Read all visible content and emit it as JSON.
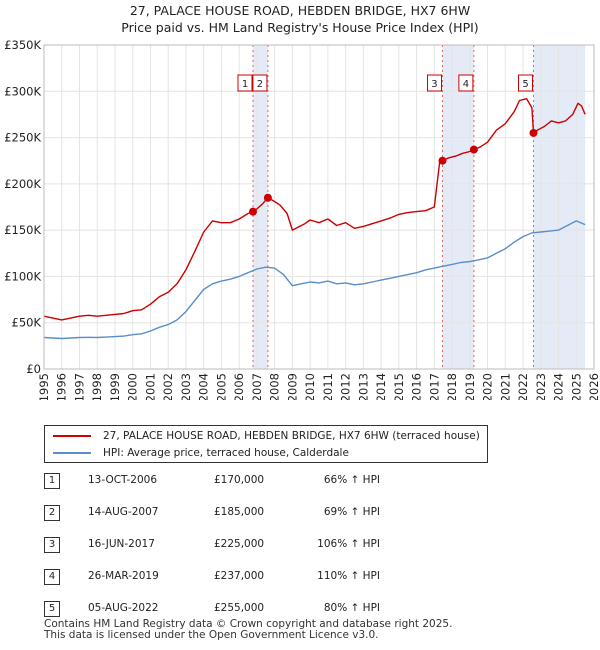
{
  "chart_data": {
    "type": "line",
    "title": "27, PALACE HOUSE ROAD, HEBDEN BRIDGE, HX7 6HW",
    "subtitle": "Price paid vs. HM Land Registry's House Price Index (HPI)",
    "xlabel": "",
    "ylabel": "",
    "xlim": [
      1995,
      2026
    ],
    "ylim": [
      0,
      350000
    ],
    "y_ticks": [
      {
        "value": 0,
        "label": "£0"
      },
      {
        "value": 50000,
        "label": "£50K"
      },
      {
        "value": 100000,
        "label": "£100K"
      },
      {
        "value": 150000,
        "label": "£150K"
      },
      {
        "value": 200000,
        "label": "£200K"
      },
      {
        "value": 250000,
        "label": "£250K"
      },
      {
        "value": 300000,
        "label": "£300K"
      },
      {
        "value": 350000,
        "label": "£350K"
      }
    ],
    "x_ticks": [
      "1995",
      "1996",
      "1997",
      "1998",
      "1999",
      "2000",
      "2001",
      "2002",
      "2003",
      "2004",
      "2005",
      "2006",
      "2007",
      "2008",
      "2009",
      "2010",
      "2011",
      "2012",
      "2013",
      "2014",
      "2015",
      "2016",
      "2017",
      "2018",
      "2019",
      "2020",
      "2021",
      "2022",
      "2023",
      "2024",
      "2025",
      "2026"
    ],
    "grid": true,
    "series": [
      {
        "name": "27, PALACE HOUSE ROAD, HEBDEN BRIDGE, HX7 6HW (terraced house)",
        "color": "#cc0000",
        "x": [
          1995.0,
          1995.5,
          1996.0,
          1996.5,
          1997.0,
          1997.5,
          1998.0,
          1998.5,
          1999.0,
          1999.5,
          2000.0,
          2000.5,
          2001.0,
          2001.5,
          2002.0,
          2002.5,
          2003.0,
          2003.5,
          2004.0,
          2004.5,
          2005.0,
          2005.5,
          2006.0,
          2006.5,
          2006.78,
          2007.0,
          2007.3,
          2007.62,
          2007.9,
          2008.3,
          2008.7,
          2009.0,
          2009.3,
          2009.7,
          2010.0,
          2010.5,
          2011.0,
          2011.5,
          2012.0,
          2012.5,
          2013.0,
          2013.5,
          2014.0,
          2014.5,
          2015.0,
          2015.5,
          2016.0,
          2016.5,
          2017.0,
          2017.3,
          2017.46,
          2017.8,
          2018.2,
          2018.6,
          2019.0,
          2019.23,
          2019.6,
          2020.0,
          2020.5,
          2021.0,
          2021.5,
          2021.8,
          2022.2,
          2022.5,
          2022.59,
          2022.8,
          2023.2,
          2023.6,
          2024.0,
          2024.4,
          2024.8,
          2025.1,
          2025.3,
          2025.5
        ],
        "values": [
          57000,
          55000,
          53000,
          55000,
          57000,
          58000,
          57000,
          58000,
          59000,
          60000,
          63000,
          64000,
          70000,
          78000,
          83000,
          92000,
          107000,
          127000,
          148000,
          160000,
          158000,
          158000,
          162000,
          168000,
          170000,
          173000,
          178000,
          185000,
          182000,
          177000,
          168000,
          150000,
          153000,
          157000,
          161000,
          158000,
          162000,
          155000,
          158000,
          152000,
          154000,
          157000,
          160000,
          163000,
          167000,
          169000,
          170000,
          171000,
          175000,
          223000,
          225000,
          228000,
          230000,
          233000,
          235000,
          237000,
          240000,
          245000,
          258000,
          265000,
          278000,
          290000,
          292000,
          282000,
          255000,
          258000,
          262000,
          268000,
          266000,
          268000,
          275000,
          287000,
          284000,
          275000
        ]
      },
      {
        "name": "HPI: Average price, terraced house, Calderdale",
        "color": "#5b8ec9",
        "x": [
          1995.0,
          1995.5,
          1996.0,
          1996.5,
          1997.0,
          1997.5,
          1998.0,
          1998.5,
          1999.0,
          1999.5,
          2000.0,
          2000.5,
          2001.0,
          2001.5,
          2002.0,
          2002.5,
          2003.0,
          2003.5,
          2004.0,
          2004.5,
          2005.0,
          2005.5,
          2006.0,
          2006.5,
          2007.0,
          2007.5,
          2008.0,
          2008.5,
          2009.0,
          2009.5,
          2010.0,
          2010.5,
          2011.0,
          2011.5,
          2012.0,
          2012.5,
          2013.0,
          2013.5,
          2014.0,
          2014.5,
          2015.0,
          2015.5,
          2016.0,
          2016.5,
          2017.0,
          2017.5,
          2018.0,
          2018.5,
          2019.0,
          2019.5,
          2020.0,
          2020.5,
          2021.0,
          2021.5,
          2022.0,
          2022.5,
          2023.0,
          2023.5,
          2024.0,
          2024.5,
          2025.0,
          2025.5
        ],
        "values": [
          34000,
          33500,
          33000,
          33500,
          34000,
          34200,
          34000,
          34500,
          35000,
          35500,
          37000,
          38000,
          41000,
          45000,
          48000,
          53000,
          62000,
          74000,
          86000,
          92000,
          95000,
          97000,
          100000,
          104000,
          108000,
          110000,
          109000,
          102000,
          90000,
          92000,
          94000,
          93000,
          95000,
          92000,
          93000,
          91000,
          92000,
          94000,
          96000,
          98000,
          100000,
          102000,
          104000,
          107000,
          109000,
          111000,
          113000,
          115000,
          116000,
          118000,
          120000,
          125000,
          130000,
          137000,
          143000,
          147000,
          148000,
          149000,
          150000,
          155000,
          160000,
          156000
        ]
      }
    ],
    "sales": [
      {
        "num": "1",
        "x": 2006.78,
        "date": "13-OCT-2006",
        "price": "£170,000",
        "price_value": 170000,
        "hpi": "66% ↑ HPI"
      },
      {
        "num": "2",
        "x": 2007.62,
        "date": "14-AUG-2007",
        "price": "£185,000",
        "price_value": 185000,
        "hpi": "69% ↑ HPI"
      },
      {
        "num": "3",
        "x": 2017.46,
        "date": "16-JUN-2017",
        "price": "£225,000",
        "price_value": 225000,
        "hpi": "106% ↑ HPI"
      },
      {
        "num": "4",
        "x": 2019.23,
        "date": "26-MAR-2019",
        "price": "£237,000",
        "price_value": 237000,
        "hpi": "110% ↑ HPI"
      },
      {
        "num": "5",
        "x": 2022.59,
        "date": "05-AUG-2022",
        "price": "£255,000",
        "price_value": 255000,
        "hpi": "80% ↑ HPI"
      }
    ],
    "shaded_spans": [
      [
        2006.78,
        2007.62
      ],
      [
        2017.46,
        2019.23
      ],
      [
        2022.59,
        2025.5
      ]
    ]
  },
  "legend": {
    "property_label": "27, PALACE HOUSE ROAD, HEBDEN BRIDGE, HX7 6HW (terraced house)",
    "hpi_label": "HPI: Average price, terraced house, Calderdale"
  },
  "footer": {
    "line1": "Contains HM Land Registry data © Crown copyright and database right 2025.",
    "line2": "This data is licensed under the Open Government Licence v3.0."
  }
}
